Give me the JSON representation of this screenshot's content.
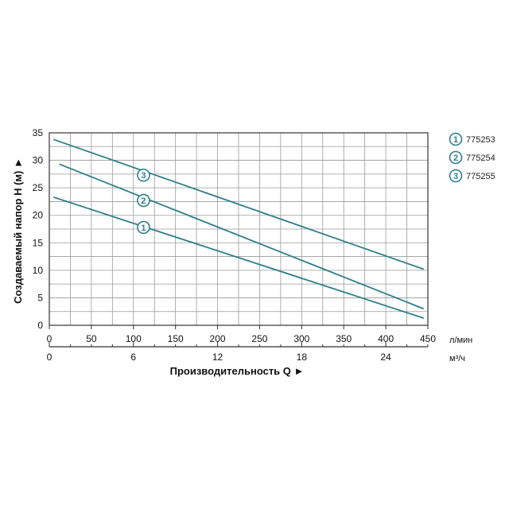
{
  "chart_data": {
    "type": "line",
    "ylabel": "Создаваемый напор Н (м) ►",
    "xlabel": "Производительность Q ►",
    "x_primary_unit": "л/мин",
    "x_secondary_unit": "м³/ч",
    "xlim": [
      0,
      450
    ],
    "ylim": [
      0,
      35
    ],
    "x_ticks": [
      0,
      50,
      100,
      150,
      200,
      250,
      300,
      350,
      400,
      450
    ],
    "x_secondary_ticks": [
      0,
      6,
      12,
      18,
      24
    ],
    "y_ticks": [
      0,
      5,
      10,
      15,
      20,
      25,
      30,
      35
    ],
    "grid": true,
    "legend_position": "right",
    "series": [
      {
        "name": "775253",
        "marker": "1",
        "x": [
          5,
          445
        ],
        "y": [
          23.3,
          1.3
        ],
        "marker_at": [
          112,
          17.8
        ]
      },
      {
        "name": "775254",
        "marker": "2",
        "x": [
          12,
          445
        ],
        "y": [
          29.3,
          3.0
        ],
        "marker_at": [
          112,
          22.7
        ]
      },
      {
        "name": "775255",
        "marker": "3",
        "x": [
          5,
          445
        ],
        "y": [
          33.8,
          10.2
        ],
        "marker_at": [
          112,
          27.3
        ]
      }
    ],
    "colors": {
      "line": "#2e7f8c",
      "grid": "#9a9a9a",
      "axis": "#333333"
    }
  }
}
